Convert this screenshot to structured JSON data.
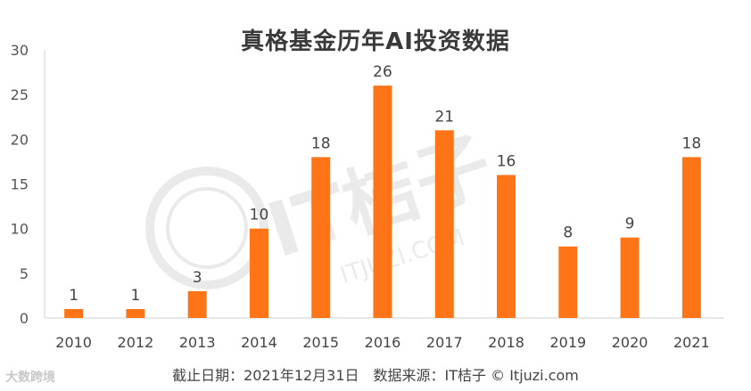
{
  "chart_data": {
    "type": "bar",
    "title": "真格基金历年AI投资数据",
    "categories": [
      "2010",
      "2012",
      "2013",
      "2014",
      "2015",
      "2016",
      "2017",
      "2018",
      "2019",
      "2020",
      "2021"
    ],
    "values": [
      1,
      1,
      3,
      10,
      18,
      26,
      21,
      16,
      8,
      9,
      18
    ],
    "ylim": [
      0,
      30
    ],
    "yticks": [
      0,
      5,
      10,
      15,
      20,
      25,
      30
    ],
    "xlabel": "",
    "ylabel": "",
    "bar_color": "#FF7417",
    "grid": false,
    "legend": "none"
  },
  "footer": {
    "source": "截止日期：2021年12月31日　数据来源：IT桔子 © Itjuzi.com",
    "logo": "大数跨境"
  },
  "watermark": {
    "brand": "IT桔子",
    "site": "ITJUZI.COM"
  }
}
